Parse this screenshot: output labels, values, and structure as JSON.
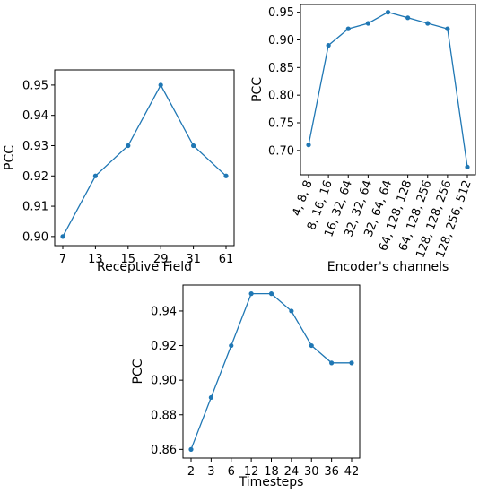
{
  "chart_data": [
    {
      "type": "line",
      "xlabel": "Receptive Field",
      "ylabel": "PCC",
      "categories": [
        "7",
        "13",
        "15",
        "29",
        "31",
        "61"
      ],
      "values": [
        0.9,
        0.92,
        0.93,
        0.95,
        0.93,
        0.92
      ],
      "yticks": [
        0.9,
        0.91,
        0.92,
        0.93,
        0.94,
        0.95
      ],
      "ytick_labels": [
        "0.90",
        "0.91",
        "0.92",
        "0.93",
        "0.94",
        "0.95"
      ],
      "ylim": [
        0.897,
        0.955
      ],
      "color": "#1f77b4",
      "grid": false
    },
    {
      "type": "line",
      "xlabel": "Encoder's channels",
      "ylabel": "PCC",
      "categories": [
        "4, 8, 8",
        "8, 16, 16",
        "16, 32, 64",
        "32, 32, 64",
        "32, 64, 64",
        "64, 128, 128",
        "64, 128, 256",
        "128, 128, 256",
        "128, 256, 512"
      ],
      "values": [
        0.71,
        0.89,
        0.92,
        0.93,
        0.95,
        0.94,
        0.93,
        0.92,
        0.67
      ],
      "yticks": [
        0.7,
        0.75,
        0.8,
        0.85,
        0.9,
        0.95
      ],
      "ytick_labels": [
        "0.70",
        "0.75",
        "0.80",
        "0.85",
        "0.90",
        "0.95"
      ],
      "ylim": [
        0.656,
        0.964
      ],
      "color": "#1f77b4",
      "grid": false
    },
    {
      "type": "line",
      "xlabel": "Timesteps",
      "ylabel": "PCC",
      "categories": [
        "2",
        "3",
        "6",
        "12",
        "18",
        "24",
        "30",
        "36",
        "42"
      ],
      "values": [
        0.86,
        0.89,
        0.92,
        0.95,
        0.95,
        0.94,
        0.92,
        0.91,
        0.91
      ],
      "yticks": [
        0.86,
        0.88,
        0.9,
        0.92,
        0.94
      ],
      "ytick_labels": [
        "0.86",
        "0.88",
        "0.90",
        "0.92",
        "0.94"
      ],
      "ylim": [
        0.855,
        0.955
      ],
      "color": "#1f77b4",
      "grid": false
    }
  ]
}
